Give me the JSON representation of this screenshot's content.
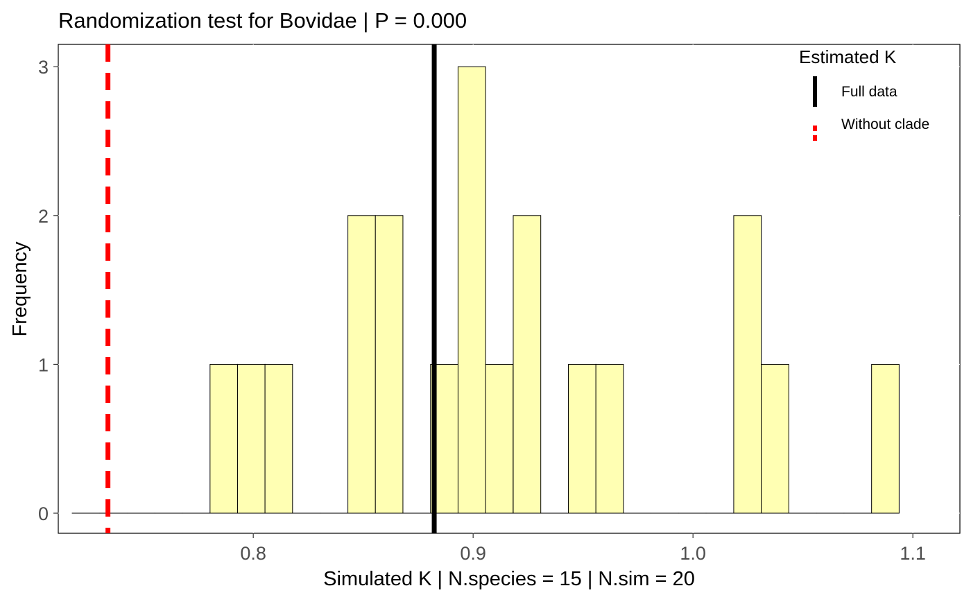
{
  "chart_data": {
    "type": "bar",
    "title": "Randomization test for Bovidae  | P =  0.000",
    "xlabel": "Simulated K | N.species =  15 | N.sim =  20",
    "ylabel": "Frequency",
    "xlim": [
      0.7113,
      1.1214
    ],
    "ylim": [
      -0.135,
      3.15
    ],
    "x_ticks": [
      0.8,
      0.9,
      1.0,
      1.1
    ],
    "x_tick_labels": [
      "0.8",
      "0.9",
      "1.0",
      "1.1"
    ],
    "y_ticks": [
      0,
      1,
      2,
      3
    ],
    "y_tick_labels": [
      "0",
      "1",
      "2",
      "3"
    ],
    "bar_fill": "#ffffb3",
    "bar_stroke": "#000000",
    "bin_width": 0.01253,
    "bins": [
      {
        "x": 0.7239,
        "count": 0
      },
      {
        "x": 0.7364,
        "count": 0
      },
      {
        "x": 0.749,
        "count": 0
      },
      {
        "x": 0.7615,
        "count": 0
      },
      {
        "x": 0.774,
        "count": 0
      },
      {
        "x": 0.7866,
        "count": 1
      },
      {
        "x": 0.7991,
        "count": 1
      },
      {
        "x": 0.8116,
        "count": 1
      },
      {
        "x": 0.8242,
        "count": 0
      },
      {
        "x": 0.8367,
        "count": 0
      },
      {
        "x": 0.8493,
        "count": 2
      },
      {
        "x": 0.8618,
        "count": 2
      },
      {
        "x": 0.8743,
        "count": 0
      },
      {
        "x": 0.8869,
        "count": 1
      },
      {
        "x": 0.8994,
        "count": 3
      },
      {
        "x": 0.9119,
        "count": 1
      },
      {
        "x": 0.9245,
        "count": 2
      },
      {
        "x": 0.937,
        "count": 0
      },
      {
        "x": 0.9496,
        "count": 1
      },
      {
        "x": 0.9621,
        "count": 1
      },
      {
        "x": 0.9746,
        "count": 0
      },
      {
        "x": 0.9872,
        "count": 0
      },
      {
        "x": 0.9997,
        "count": 0
      },
      {
        "x": 1.0122,
        "count": 0
      },
      {
        "x": 1.0248,
        "count": 2
      },
      {
        "x": 1.0373,
        "count": 1
      },
      {
        "x": 1.0499,
        "count": 0
      },
      {
        "x": 1.0624,
        "count": 0
      },
      {
        "x": 1.0749,
        "count": 0
      },
      {
        "x": 1.0875,
        "count": 1
      }
    ],
    "vlines": [
      {
        "name": "Full data",
        "x": 0.8823,
        "color": "#000000",
        "dashed": false
      },
      {
        "name": "Without clade",
        "x": 0.7339,
        "color": "#ff0000",
        "dashed": true
      }
    ],
    "legend": {
      "title": "Estimated K",
      "placement": "top-right",
      "entries": [
        "Full data",
        "Without clade"
      ]
    }
  }
}
